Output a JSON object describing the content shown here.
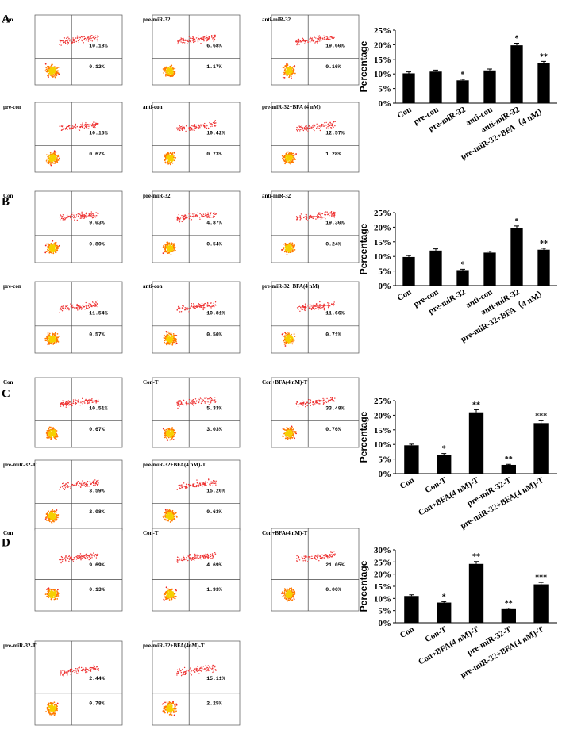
{
  "panels": [
    {
      "letter": "A",
      "plots": [
        {
          "label": "Con",
          "upper": "10.18%",
          "lower": "0.12%"
        },
        {
          "label": "pre-miR-32",
          "upper": "6.68%",
          "lower": "1.17%"
        },
        {
          "label": "anti-miR-32",
          "upper": "19.60%",
          "lower": "0.16%"
        },
        {
          "label": "pre-con",
          "upper": "10.15%",
          "lower": "0.67%"
        },
        {
          "label": "anti-con",
          "upper": "10.42%",
          "lower": "0.73%"
        },
        {
          "label": "pre-miR-32+BFA (4 nM)",
          "upper": "12.57%",
          "lower": "1.28%"
        }
      ],
      "chart_data": {
        "type": "bar",
        "ylabel": "Percentage",
        "color": "#000000",
        "categories": [
          "Con",
          "pre-con",
          "pre-miR-32",
          "anti-con",
          "anti-miR-32",
          "pre-miR-32+BFA（4 nM）"
        ],
        "values": [
          10.2,
          10.8,
          7.8,
          11.2,
          19.8,
          13.8
        ],
        "errors": [
          0.5,
          0.5,
          0.4,
          0.5,
          0.7,
          0.5
        ],
        "significance": [
          null,
          null,
          "*",
          null,
          "*",
          "**"
        ],
        "ylim": [
          0,
          25
        ],
        "yticks": [
          {
            "value": 0,
            "label": "0%"
          },
          {
            "value": 5,
            "label": "5%"
          },
          {
            "value": 10,
            "label": "10%"
          },
          {
            "value": 15,
            "label": "15%"
          },
          {
            "value": 20,
            "label": "20%"
          },
          {
            "value": 25,
            "label": "25%"
          }
        ]
      }
    },
    {
      "letter": "B",
      "plots": [
        {
          "label": "Con",
          "upper": "9.03%",
          "lower": "0.80%"
        },
        {
          "label": "pre-miR-32",
          "upper": "4.87%",
          "lower": "0.54%"
        },
        {
          "label": "anti-miR-32",
          "upper": "19.30%",
          "lower": "0.24%"
        },
        {
          "label": "pre-con",
          "upper": "11.54%",
          "lower": "0.57%"
        },
        {
          "label": "anti-con",
          "upper": "10.81%",
          "lower": "0.50%"
        },
        {
          "label": "pre-miR-32+BFA(4 nM)",
          "upper": "11.66%",
          "lower": "0.71%"
        }
      ],
      "chart_data": {
        "type": "bar",
        "ylabel": "Percentage",
        "color": "#000000",
        "categories": [
          "Con",
          "pre-con",
          "pre-miR-32",
          "anti-con",
          "anti-miR-32",
          "pre-miR-32+BFA（4 nM）"
        ],
        "values": [
          9.8,
          12.0,
          5.3,
          11.3,
          19.6,
          12.3
        ],
        "errors": [
          0.5,
          0.6,
          0.3,
          0.5,
          0.8,
          0.5
        ],
        "significance": [
          null,
          null,
          "*",
          null,
          "*",
          "**"
        ],
        "ylim": [
          0,
          25
        ],
        "yticks": [
          {
            "value": 0,
            "label": "0%"
          },
          {
            "value": 5,
            "label": "5%"
          },
          {
            "value": 10,
            "label": "10%"
          },
          {
            "value": 15,
            "label": "15%"
          },
          {
            "value": 20,
            "label": "20%"
          },
          {
            "value": 25,
            "label": "25%"
          }
        ]
      }
    },
    {
      "letter": "C",
      "plots": [
        {
          "label": "Con",
          "upper": "10.51%",
          "lower": "0.67%"
        },
        {
          "label": "Con-T",
          "upper": "5.33%",
          "lower": "3.03%"
        },
        {
          "label": "Con+BFA(4 nM)-T",
          "upper": "33.48%",
          "lower": "0.76%"
        },
        {
          "label": "pre-miR-32-T",
          "upper": "3.59%",
          "lower": "2.08%"
        },
        {
          "label": "pre-miR-32+BFA(4 nM)-T",
          "upper": "15.26%",
          "lower": "0.63%"
        }
      ],
      "chart_data": {
        "type": "bar",
        "ylabel": "Percentage",
        "color": "#000000",
        "categories": [
          "Con",
          "Con-T",
          "Con+BFA(4 nM)-T",
          "pre-miR-32-T",
          "pre-miR-32+BFA(4 nM)-T"
        ],
        "values": [
          9.7,
          6.4,
          21.0,
          3.0,
          17.3
        ],
        "errors": [
          0.4,
          0.5,
          0.9,
          0.2,
          0.8
        ],
        "significance": [
          null,
          "*",
          "**",
          "**",
          "***"
        ],
        "ylim": [
          0,
          25
        ],
        "yticks": [
          {
            "value": 0,
            "label": "0%"
          },
          {
            "value": 5,
            "label": "5%"
          },
          {
            "value": 10,
            "label": "10%"
          },
          {
            "value": 15,
            "label": "15%"
          },
          {
            "value": 20,
            "label": "20%"
          },
          {
            "value": 25,
            "label": "25%"
          }
        ]
      }
    },
    {
      "letter": "D",
      "plots": [
        {
          "label": "Con",
          "upper": "9.69%",
          "lower": "0.13%"
        },
        {
          "label": "Con-T",
          "upper": "4.69%",
          "lower": "1.93%"
        },
        {
          "label": "Con+BFA(4 nM)-T",
          "upper": "21.05%",
          "lower": "0.06%"
        },
        {
          "label": "pre-miR-32-T",
          "upper": "2.44%",
          "lower": "0.78%"
        },
        {
          "label": "pre-miR-32+BFA(4nM)-T",
          "upper": "15.11%",
          "lower": "2.25%"
        }
      ],
      "chart_data": {
        "type": "bar",
        "ylabel": "Percentage",
        "color": "#000000",
        "categories": [
          "Con",
          "Con-T",
          "Con+BFA(4 nM)-T",
          "pre-miR-32-T",
          "pre-miR-32+BFA(4 nM)-T"
        ],
        "values": [
          11.0,
          8.3,
          24.2,
          5.6,
          15.8
        ],
        "errors": [
          0.5,
          0.4,
          1.0,
          0.4,
          0.8
        ],
        "significance": [
          null,
          "*",
          "**",
          "**",
          "***"
        ],
        "ylim": [
          0,
          30
        ],
        "yticks": [
          {
            "value": 0,
            "label": "0%"
          },
          {
            "value": 5,
            "label": "5%"
          },
          {
            "value": 10,
            "label": "10%"
          },
          {
            "value": 15,
            "label": "15%"
          },
          {
            "value": 20,
            "label": "20%"
          },
          {
            "value": 25,
            "label": "25%"
          },
          {
            "value": 30,
            "label": "30%"
          }
        ]
      }
    }
  ]
}
